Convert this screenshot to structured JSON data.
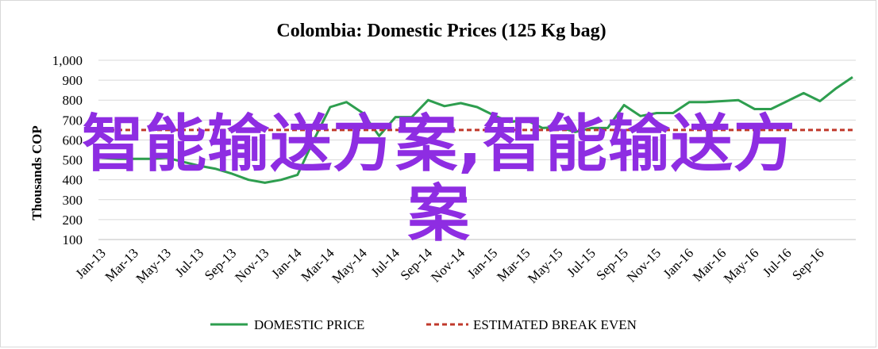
{
  "chart_data": {
    "type": "line",
    "title": "Colombia:  Domestic Prices (125 Kg bag)",
    "ylabel": "Thousands COP",
    "ylim": [
      100,
      1000
    ],
    "y_ticks": [
      "100",
      "200",
      "300",
      "400",
      "500",
      "600",
      "700",
      "800",
      "900",
      "1,000"
    ],
    "y_tick_values": [
      100,
      200,
      300,
      400,
      500,
      600,
      700,
      800,
      900,
      1000
    ],
    "grid": true,
    "legend_position": "bottom",
    "x_ticks": [
      "Jan-13",
      "Mar-13",
      "May-13",
      "Jul-13",
      "Sep-13",
      "Nov-13",
      "Jan-14",
      "Mar-14",
      "May-14",
      "Jul-14",
      "Sep-14",
      "Nov-14",
      "Jan-15",
      "Mar-15",
      "May-15",
      "Jul-15",
      "Sep-15",
      "Nov-15",
      "Jan-16",
      "Mar-16",
      "May-16",
      "Jul-16",
      "Sep-16"
    ],
    "x": [
      "Jan-13",
      "Feb-13",
      "Mar-13",
      "Apr-13",
      "May-13",
      "Jun-13",
      "Jul-13",
      "Aug-13",
      "Sep-13",
      "Oct-13",
      "Nov-13",
      "Dec-13",
      "Jan-14",
      "Feb-14",
      "Mar-14",
      "Apr-14",
      "May-14",
      "Jun-14",
      "Jul-14",
      "Aug-14",
      "Sep-14",
      "Oct-14",
      "Nov-14",
      "Dec-14",
      "Jan-15",
      "Feb-15",
      "Mar-15",
      "Apr-15",
      "May-15",
      "Jun-15",
      "Jul-15",
      "Aug-15",
      "Sep-15",
      "Oct-15",
      "Nov-15",
      "Dec-15",
      "Jan-16",
      "Feb-16",
      "Mar-16",
      "Apr-16",
      "May-16",
      "Jun-16",
      "Jul-16",
      "Aug-16",
      "Sep-16",
      "Oct-16",
      "Nov-16"
    ],
    "series": [
      {
        "name": "DOMESTIC PRICE",
        "color": "#2e9e4f",
        "style": "solid",
        "values": [
          510,
          505,
          505,
          505,
          510,
          490,
          470,
          455,
          430,
          400,
          385,
          400,
          425,
          600,
          765,
          790,
          735,
          620,
          715,
          715,
          800,
          770,
          785,
          765,
          725,
          690,
          700,
          660,
          665,
          640,
          660,
          660,
          775,
          720,
          735,
          735,
          790,
          790,
          795,
          800,
          755,
          755,
          795,
          835,
          795,
          860,
          915
        ]
      },
      {
        "name": "ESTIMATED BREAK EVEN",
        "color": "#c0392b",
        "style": "dashed",
        "values": [
          650,
          650,
          650,
          650,
          650,
          650,
          650,
          650,
          650,
          650,
          650,
          650,
          650,
          650,
          650,
          650,
          650,
          650,
          650,
          650,
          650,
          650,
          650,
          650,
          650,
          650,
          650,
          650,
          650,
          650,
          650,
          650,
          650,
          650,
          650,
          650,
          650,
          650,
          650,
          650,
          650,
          650,
          650,
          650,
          650,
          650,
          650
        ]
      }
    ]
  },
  "watermark": {
    "line1": "智能输送方案,智能输送方",
    "line2": "案"
  }
}
